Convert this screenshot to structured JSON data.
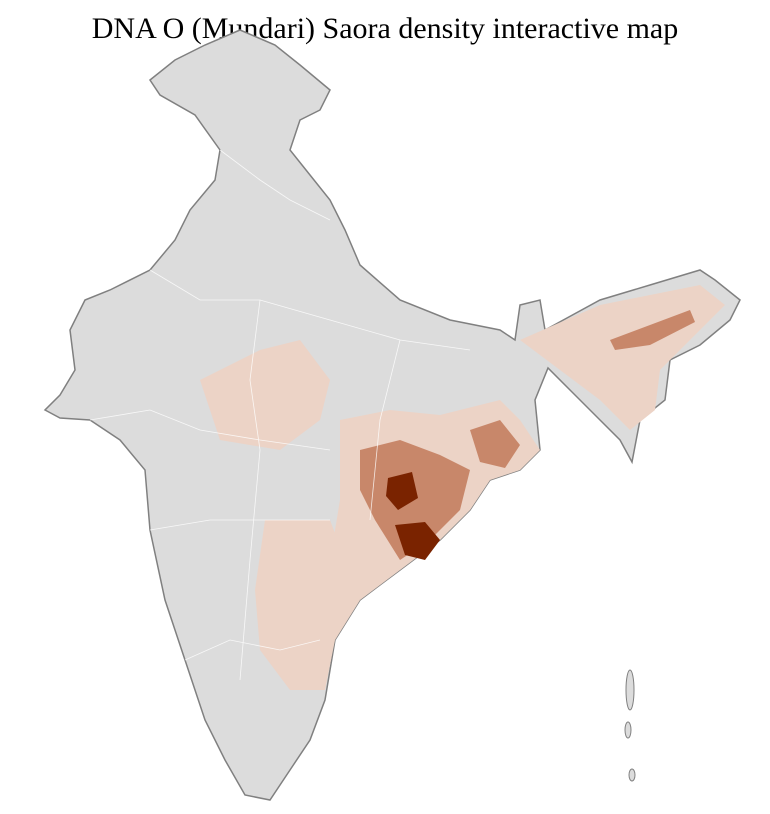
{
  "title": "DNA O (Mundari) Saora density interactive map",
  "colors": {
    "no_data": "#dcdcdc",
    "border_district": "#ffffff",
    "border_state": "#808080",
    "low": "#ecd3c6",
    "medium": "#c8876a",
    "high": "#a34a1f",
    "highest": "#7a2300"
  },
  "regions": [
    {
      "name": "east-central-low-density",
      "level": "low"
    },
    {
      "name": "peninsular-low-density",
      "level": "low"
    },
    {
      "name": "northeast-low-density",
      "level": "low"
    },
    {
      "name": "odisha-medium-density",
      "level": "medium"
    },
    {
      "name": "bengal-medium-density",
      "level": "medium"
    },
    {
      "name": "assam-medium-density",
      "level": "medium"
    },
    {
      "name": "chhattisgarh-highest-density",
      "level": "highest"
    },
    {
      "name": "south-odisha-highest-density",
      "level": "highest"
    }
  ]
}
